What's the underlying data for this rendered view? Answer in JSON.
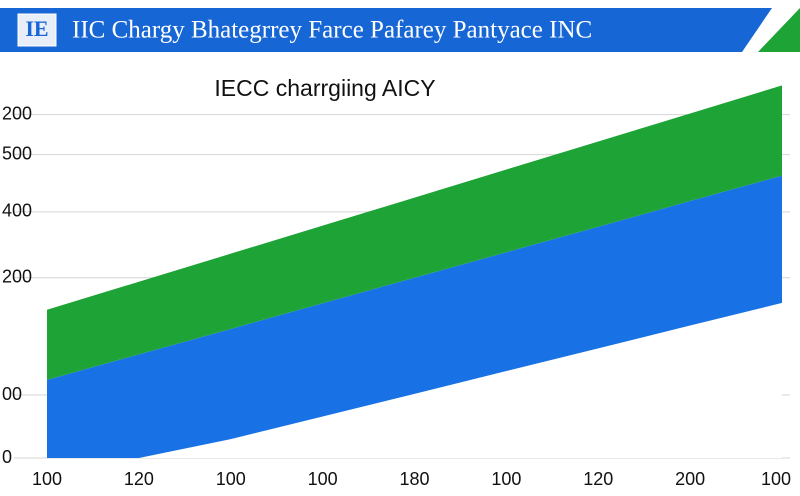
{
  "chart_data": {
    "type": "area",
    "title": "IIC Chargy Bhategrrey Farce Pafarey Pantyace INC",
    "subtitle": "IECC charrgiing AICY",
    "categories": [
      "100",
      "120",
      "100",
      "100",
      "180",
      "100",
      "120",
      "200",
      "100"
    ],
    "series": [
      {
        "color": "#ffffff",
        "values": [
          0,
          0,
          66,
          145,
          224,
          304,
          383,
          463,
          542
        ]
      },
      {
        "color": "#1872e6",
        "values": [
          273,
          362,
          385,
          396,
          406,
          415,
          425,
          435,
          445
        ]
      },
      {
        "color": "#1ea337",
        "values": [
          245,
          254,
          263,
          271,
          280,
          289,
          298,
          306,
          315
        ]
      }
    ],
    "stacked": true,
    "ylim": [
      0,
      1300
    ],
    "yticks": [
      {
        "value": 1200,
        "label": "200"
      },
      {
        "value": 1060,
        "label": "500"
      },
      {
        "value": 860,
        "label": "400"
      },
      {
        "value": 630,
        "label": "200"
      },
      {
        "value": 220,
        "label": "00"
      },
      0
    ],
    "grid": true
  }
}
